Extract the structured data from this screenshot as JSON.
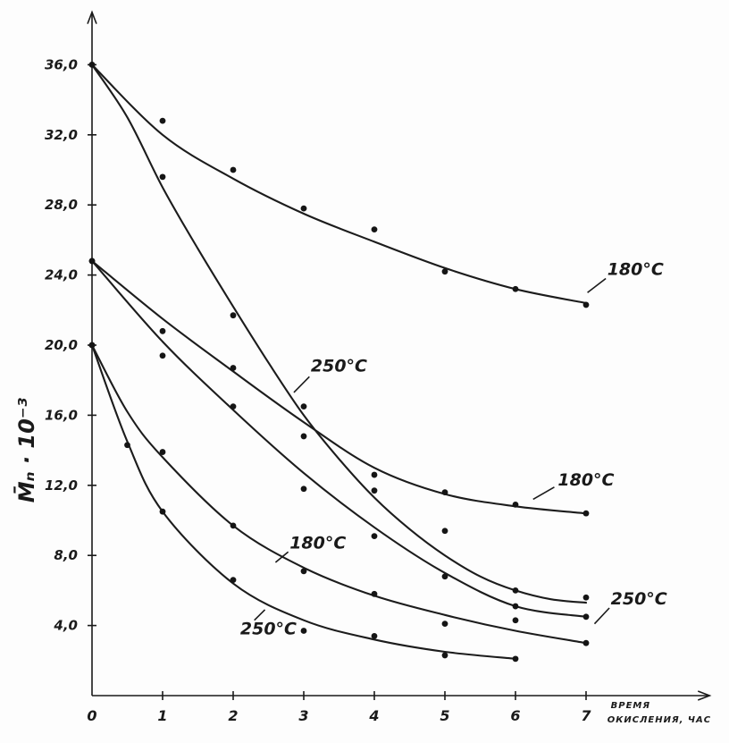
{
  "chart_data": {
    "type": "line",
    "xlabel_line1": "ВРЕМЯ",
    "xlabel_line2": "ОКИСЛЕНИЯ, ЧАС",
    "ylabel": "M̄ₙ · 10⁻³",
    "xlim": [
      0,
      8.75
    ],
    "ylim": [
      0,
      39.0
    ],
    "x_ticks": [
      "0",
      "1",
      "2",
      "3",
      "4",
      "5",
      "6",
      "7"
    ],
    "y_ticks": [
      "4,0",
      "8,0",
      "12,0",
      "16,0",
      "20,0",
      "24,0",
      "28,0",
      "32,0",
      "36,0"
    ],
    "grid": false,
    "legend": "none",
    "series": [
      {
        "name": "180°C",
        "points": [
          [
            0,
            36.0
          ],
          [
            1,
            32.8
          ],
          [
            2,
            30.0
          ],
          [
            3,
            27.8
          ],
          [
            4,
            26.6
          ],
          [
            5,
            24.2
          ],
          [
            6,
            23.2
          ],
          [
            7,
            22.3
          ]
        ],
        "curve": [
          [
            0,
            36.0
          ],
          [
            1,
            32.0
          ],
          [
            2,
            29.5
          ],
          [
            3,
            27.5
          ],
          [
            4,
            25.9
          ],
          [
            5,
            24.4
          ],
          [
            6,
            23.2
          ],
          [
            7,
            22.4
          ]
        ]
      },
      {
        "name": "250°C",
        "points": [
          [
            0,
            36.0
          ],
          [
            1,
            29.6
          ],
          [
            2,
            21.7
          ],
          [
            3,
            16.5
          ],
          [
            4,
            11.7
          ],
          [
            5,
            9.4
          ],
          [
            6,
            6.0
          ],
          [
            7,
            5.6
          ]
        ],
        "curve": [
          [
            0,
            36.0
          ],
          [
            0.5,
            33.0
          ],
          [
            1,
            29.0
          ],
          [
            1.5,
            25.5
          ],
          [
            2,
            22.2
          ],
          [
            2.5,
            19.0
          ],
          [
            3,
            16.0
          ],
          [
            3.5,
            13.5
          ],
          [
            4,
            11.3
          ],
          [
            4.5,
            9.5
          ],
          [
            5,
            8.0
          ],
          [
            5.5,
            6.8
          ],
          [
            6,
            6.0
          ],
          [
            6.5,
            5.5
          ],
          [
            7,
            5.3
          ]
        ]
      },
      {
        "name": "180°C",
        "points": [
          [
            0,
            24.8
          ],
          [
            1,
            20.8
          ],
          [
            2,
            18.7
          ],
          [
            3,
            14.8
          ],
          [
            4,
            12.6
          ],
          [
            5,
            11.6
          ],
          [
            6,
            10.9
          ],
          [
            7,
            10.4
          ]
        ],
        "curve": [
          [
            0,
            24.8
          ],
          [
            1,
            21.5
          ],
          [
            2,
            18.5
          ],
          [
            3,
            15.6
          ],
          [
            4,
            13.0
          ],
          [
            5,
            11.5
          ],
          [
            6,
            10.8
          ],
          [
            7,
            10.4
          ]
        ]
      },
      {
        "name": "250°C",
        "points": [
          [
            0,
            24.8
          ],
          [
            1,
            19.4
          ],
          [
            2,
            16.5
          ],
          [
            3,
            11.8
          ],
          [
            4,
            9.1
          ],
          [
            5,
            6.8
          ],
          [
            6,
            5.1
          ],
          [
            7,
            4.5
          ]
        ],
        "curve": [
          [
            0,
            24.8
          ],
          [
            1,
            20.2
          ],
          [
            2,
            16.3
          ],
          [
            3,
            12.7
          ],
          [
            4,
            9.6
          ],
          [
            5,
            7.0
          ],
          [
            6,
            5.1
          ],
          [
            7,
            4.5
          ]
        ]
      },
      {
        "name": "180°C",
        "points": [
          [
            0,
            20.0
          ],
          [
            1,
            13.9
          ],
          [
            2,
            9.7
          ],
          [
            3,
            7.1
          ],
          [
            4,
            5.8
          ],
          [
            5,
            4.1
          ],
          [
            6,
            4.3
          ],
          [
            7,
            3.0
          ]
        ],
        "curve": [
          [
            0,
            20.0
          ],
          [
            0.5,
            16.2
          ],
          [
            1,
            13.6
          ],
          [
            2,
            9.7
          ],
          [
            3,
            7.3
          ],
          [
            4,
            5.7
          ],
          [
            5,
            4.6
          ],
          [
            6,
            3.7
          ],
          [
            7,
            3.0
          ]
        ]
      },
      {
        "name": "250°C",
        "points": [
          [
            0,
            20.0
          ],
          [
            0.5,
            14.3
          ],
          [
            1,
            10.5
          ],
          [
            2,
            6.6
          ],
          [
            3,
            3.7
          ],
          [
            4,
            3.4
          ],
          [
            5,
            2.3
          ],
          [
            6,
            2.1
          ]
        ],
        "curve": [
          [
            0,
            20.0
          ],
          [
            0.5,
            14.5
          ],
          [
            1,
            10.5
          ],
          [
            2,
            6.4
          ],
          [
            3,
            4.3
          ],
          [
            4,
            3.2
          ],
          [
            5,
            2.5
          ],
          [
            6,
            2.1
          ]
        ]
      }
    ],
    "labels": [
      {
        "text": "180°C",
        "x": 7.3,
        "y": 24.0
      },
      {
        "text": "250°C",
        "x": 3.1,
        "y": 18.5
      },
      {
        "text": "180°C",
        "x": 6.6,
        "y": 12.0
      },
      {
        "text": "250°C",
        "x": 7.35,
        "y": 5.2
      },
      {
        "text": "180°C",
        "x": 2.8,
        "y": 8.4
      },
      {
        "text": "250°C",
        "x": 2.1,
        "y": 3.5
      }
    ]
  }
}
